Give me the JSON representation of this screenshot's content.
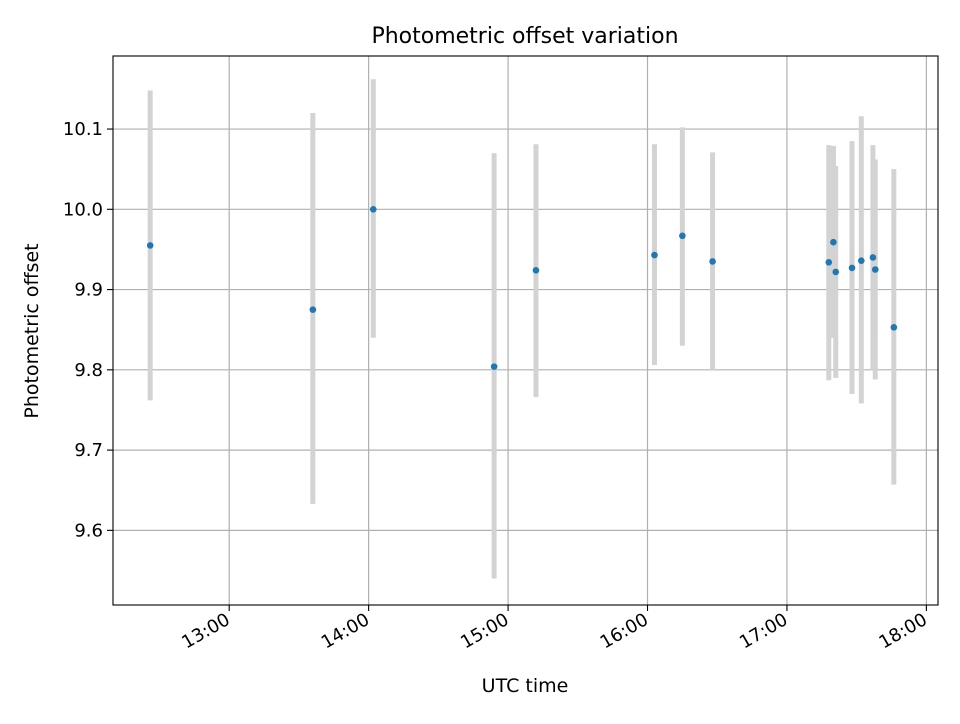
{
  "chart_data": {
    "type": "scatter",
    "title": "Photometric offset variation",
    "xlabel": "UTC time",
    "ylabel": "Photometric offset",
    "x_tick_labels": [
      "13:00",
      "14:00",
      "15:00",
      "16:00",
      "17:00",
      "18:00"
    ],
    "x_ticks": [
      "13:00",
      "14:00",
      "15:00",
      "16:00",
      "17:00",
      "18:00"
    ],
    "y_ticks": [
      9.6,
      9.7,
      9.8,
      9.9,
      10.0,
      10.1
    ],
    "y_tick_labels": [
      "9.6",
      "9.7",
      "9.8",
      "9.9",
      "10.0",
      "10.1"
    ],
    "xlim": [
      "12:10",
      "18:05"
    ],
    "ylim": [
      9.507,
      10.191
    ],
    "grid": true,
    "colors": {
      "point": "#1f77b4",
      "errorbar": "#d3d3d3",
      "grid": "#b0b0b0"
    },
    "points": [
      {
        "x": "12:26",
        "y": 9.955,
        "err_low": 9.762,
        "err_high": 10.148
      },
      {
        "x": "13:36",
        "y": 9.875,
        "err_low": 9.633,
        "err_high": 10.12
      },
      {
        "x": "14:02",
        "y": 10.0,
        "err_low": 9.84,
        "err_high": 10.162
      },
      {
        "x": "14:54",
        "y": 9.804,
        "err_low": 9.54,
        "err_high": 10.07
      },
      {
        "x": "15:12",
        "y": 9.924,
        "err_low": 9.766,
        "err_high": 10.081
      },
      {
        "x": "16:03",
        "y": 9.943,
        "err_low": 9.806,
        "err_high": 10.081
      },
      {
        "x": "16:15",
        "y": 9.967,
        "err_low": 9.83,
        "err_high": 10.102
      },
      {
        "x": "16:28",
        "y": 9.935,
        "err_low": 9.8,
        "err_high": 10.071
      },
      {
        "x": "17:18",
        "y": 9.934,
        "err_low": 9.787,
        "err_high": 10.08
      },
      {
        "x": "17:20",
        "y": 9.959,
        "err_low": 9.84,
        "err_high": 10.079
      },
      {
        "x": "17:21",
        "y": 9.922,
        "err_low": 9.79,
        "err_high": 10.054
      },
      {
        "x": "17:28",
        "y": 9.927,
        "err_low": 9.77,
        "err_high": 10.085
      },
      {
        "x": "17:32",
        "y": 9.936,
        "err_low": 9.758,
        "err_high": 10.116
      },
      {
        "x": "17:37",
        "y": 9.94,
        "err_low": 9.8,
        "err_high": 10.08
      },
      {
        "x": "17:38",
        "y": 9.925,
        "err_low": 9.788,
        "err_high": 10.062
      },
      {
        "x": "17:46",
        "y": 9.853,
        "err_low": 9.657,
        "err_high": 10.05
      }
    ]
  }
}
